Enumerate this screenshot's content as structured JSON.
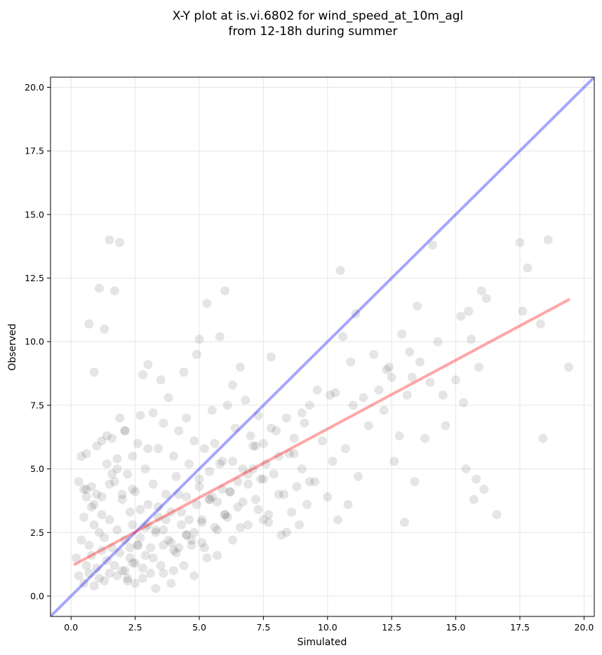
{
  "chart_data": {
    "type": "scatter",
    "title_line1": "X-Y plot at is.vi.6802 for wind_speed_at_10m_agl",
    "title_line2": "from 12-18h during summer",
    "xlabel": "Simulated",
    "ylabel": "Observed",
    "xlim": [
      -0.8,
      20.4
    ],
    "ylim": [
      -0.8,
      20.4
    ],
    "xticks": [
      "0.0",
      "2.5",
      "5.0",
      "7.5",
      "10.0",
      "12.5",
      "15.0",
      "17.5",
      "20.0"
    ],
    "yticks": [
      "0.0",
      "2.5",
      "5.0",
      "7.5",
      "10.0",
      "12.5",
      "15.0",
      "17.5",
      "20.0"
    ],
    "grid": true,
    "legend": "none",
    "colors": {
      "points": "#000000",
      "one_to_one_line": "#0000ff",
      "fit_line": "#ff0000",
      "grid": "#e6e6e6"
    },
    "one_to_one_line": {
      "x": [
        -0.8,
        20.4
      ],
      "y": [
        -0.8,
        20.4
      ]
    },
    "fit_line": {
      "x": [
        0.15,
        19.4
      ],
      "y": [
        1.25,
        11.65
      ]
    },
    "points_x": [
      0.2,
      0.3,
      0.4,
      0.5,
      0.5,
      0.6,
      0.6,
      0.7,
      0.7,
      0.8,
      0.8,
      0.9,
      0.9,
      1.0,
      1.0,
      1.1,
      1.1,
      1.2,
      1.2,
      1.3,
      1.3,
      1.4,
      1.4,
      1.5,
      1.5,
      1.6,
      1.6,
      1.7,
      1.7,
      1.8,
      1.8,
      1.9,
      1.9,
      2.0,
      2.0,
      2.1,
      2.1,
      2.2,
      2.2,
      2.3,
      2.3,
      2.4,
      2.4,
      2.5,
      2.5,
      2.6,
      2.6,
      2.7,
      2.8,
      2.8,
      2.9,
      2.9,
      3.0,
      3.0,
      3.1,
      3.2,
      3.2,
      3.3,
      3.4,
      3.4,
      3.5,
      3.6,
      3.6,
      3.7,
      3.8,
      3.9,
      4.0,
      4.0,
      4.1,
      4.2,
      4.3,
      4.4,
      4.5,
      4.5,
      4.6,
      4.7,
      4.8,
      4.9,
      5.0,
      5.0,
      5.1,
      5.2,
      5.3,
      5.4,
      5.5,
      5.6,
      5.7,
      5.8,
      5.9,
      6.0,
      6.1,
      6.2,
      6.3,
      6.4,
      6.5,
      6.6,
      6.7,
      6.8,
      6.9,
      7.0,
      7.1,
      7.2,
      7.3,
      7.4,
      7.5,
      7.6,
      7.7,
      7.8,
      7.9,
      8.0,
      8.1,
      8.2,
      8.3,
      8.4,
      8.5,
      8.6,
      8.7,
      8.8,
      8.9,
      9.0,
      9.1,
      9.2,
      9.3,
      9.5,
      9.6,
      9.8,
      10.0,
      10.1,
      10.2,
      10.3,
      10.4,
      10.5,
      10.6,
      10.7,
      10.8,
      10.9,
      11.0,
      11.1,
      11.2,
      11.4,
      11.6,
      11.8,
      12.0,
      12.2,
      12.3,
      12.4,
      12.5,
      12.6,
      12.8,
      12.9,
      13.0,
      13.1,
      13.2,
      13.3,
      13.4,
      13.5,
      13.6,
      13.8,
      14.0,
      14.1,
      14.3,
      14.5,
      14.6,
      15.0,
      15.2,
      15.3,
      15.4,
      15.5,
      15.6,
      15.7,
      15.8,
      15.9,
      16.0,
      16.1,
      16.2,
      16.6,
      17.5,
      17.6,
      17.8,
      18.3,
      18.4,
      18.6,
      19.4,
      0.3,
      0.5,
      0.7,
      0.9,
      1.1,
      1.3,
      1.5,
      1.7,
      1.9,
      2.1,
      2.3,
      2.5,
      2.7,
      2.9,
      3.1,
      3.3,
      3.5,
      3.7,
      3.9,
      4.1,
      4.3,
      4.5,
      4.7,
      4.9,
      5.1,
      5.3,
      5.5,
      5.7,
      5.9,
      6.1,
      6.3,
      6.5,
      6.7,
      6.9,
      7.1,
      7.3,
      7.5,
      7.7,
      0.4,
      0.6,
      0.8,
      1.0,
      1.2,
      1.4,
      1.6,
      1.8,
      2.0,
      2.2,
      2.4,
      2.6,
      2.8,
      3.0,
      3.2,
      3.4,
      3.6,
      3.8,
      4.0,
      4.2,
      4.4,
      4.6,
      4.8,
      5.0,
      5.2,
      5.4,
      5.6,
      5.8,
      6.0,
      6.2,
      0.6,
      0.9,
      1.2,
      1.5,
      1.8,
      2.1,
      2.4,
      2.7,
      3.0,
      3.3,
      3.6,
      3.9,
      4.2,
      4.5,
      4.8,
      5.1,
      5.4,
      5.7,
      6.0,
      6.3,
      6.6,
      6.9,
      7.2,
      7.5,
      7.8,
      8.1,
      8.4,
      8.7,
      9.0,
      9.3
    ],
    "points_y": [
      1.5,
      0.8,
      2.2,
      0.5,
      3.1,
      1.2,
      4.2,
      0.9,
      2.0,
      1.6,
      3.5,
      0.4,
      2.8,
      1.1,
      4.0,
      0.7,
      2.5,
      1.8,
      3.9,
      0.6,
      2.3,
      1.4,
      5.2,
      0.9,
      3.0,
      1.9,
      6.2,
      1.2,
      4.5,
      0.8,
      2.6,
      1.7,
      7.0,
      1.0,
      3.8,
      2.2,
      6.5,
      0.7,
      4.8,
      1.5,
      3.3,
      2.8,
      5.5,
      1.3,
      4.1,
      2.0,
      6.0,
      3.4,
      1.1,
      8.7,
      2.7,
      5.0,
      3.6,
      9.1,
      1.9,
      4.4,
      7.2,
      2.5,
      5.8,
      3.1,
      8.5,
      2.0,
      6.8,
      4.0,
      7.8,
      3.3,
      5.5,
      1.0,
      4.7,
      6.5,
      2.8,
      8.8,
      3.9,
      7.0,
      5.2,
      2.2,
      6.1,
      9.5,
      4.3,
      10.1,
      3.0,
      5.8,
      11.5,
      4.9,
      7.3,
      6.0,
      3.7,
      10.2,
      5.3,
      12.0,
      7.5,
      4.1,
      8.3,
      6.6,
      3.5,
      9.0,
      5.0,
      7.7,
      4.4,
      6.3,
      5.9,
      3.8,
      7.1,
      4.6,
      6.0,
      5.2,
      3.2,
      9.4,
      4.8,
      6.5,
      5.5,
      2.4,
      4.0,
      7.0,
      5.6,
      3.3,
      6.2,
      4.3,
      2.8,
      5.0,
      6.8,
      3.6,
      7.5,
      4.5,
      8.1,
      6.1,
      3.9,
      7.9,
      5.3,
      8.0,
      3.0,
      12.8,
      10.2,
      5.8,
      3.6,
      9.2,
      7.5,
      11.1,
      4.7,
      7.8,
      6.7,
      9.5,
      8.1,
      7.3,
      8.9,
      9.0,
      8.6,
      5.3,
      6.3,
      10.3,
      2.9,
      7.9,
      9.6,
      8.6,
      4.5,
      11.4,
      9.2,
      6.2,
      8.4,
      13.8,
      10.0,
      7.9,
      6.7,
      8.5,
      11.0,
      7.6,
      5.0,
      11.2,
      10.1,
      3.8,
      4.6,
      9.0,
      12.0,
      4.2,
      11.7,
      3.2,
      13.9,
      11.2,
      12.9,
      10.7,
      6.2,
      14.0,
      9.0,
      4.5,
      4.2,
      10.7,
      8.8,
      12.1,
      10.5,
      14.0,
      12.0,
      13.9,
      1.0,
      1.9,
      0.5,
      2.3,
      1.6,
      0.9,
      2.6,
      1.2,
      3.0,
      2.1,
      1.7,
      3.3,
      2.4,
      2.0,
      3.6,
      2.9,
      1.5,
      3.9,
      2.6,
      4.2,
      3.1,
      2.2,
      4.5,
      3.7,
      2.8,
      5.0,
      3.4,
      4.6,
      2.9,
      5.5,
      3.9,
      4.3,
      5.9,
      3.2,
      6.3,
      4.8,
      5.4,
      4.0,
      0.6,
      1.3,
      2.0,
      0.7,
      2.8,
      1.5,
      3.5,
      0.9,
      2.2,
      1.8,
      4.0,
      1.2,
      3.0,
      2.5,
      4.6,
      1.9,
      3.8,
      2.7,
      5.2,
      3.2,
      4.1,
      5.6,
      3.6,
      6.1,
      4.4,
      5.0,
      6.5,
      4.2,
      7.1,
      5.8,
      0.3,
      2.6,
      0.5,
      1.9,
      2.4,
      0.8,
      2.1,
      3.8,
      1.6,
      3.2,
      5.3,
      2.7,
      4.8,
      5.9,
      3.0,
      6.6,
      4.0,
      2.5,
      5.6,
      7.2,
      4.5,
      3.4,
      6.0,
      3.8,
      4.1,
      5.5,
      4.3,
      3.0,
      7.5,
      6.1
    ]
  }
}
